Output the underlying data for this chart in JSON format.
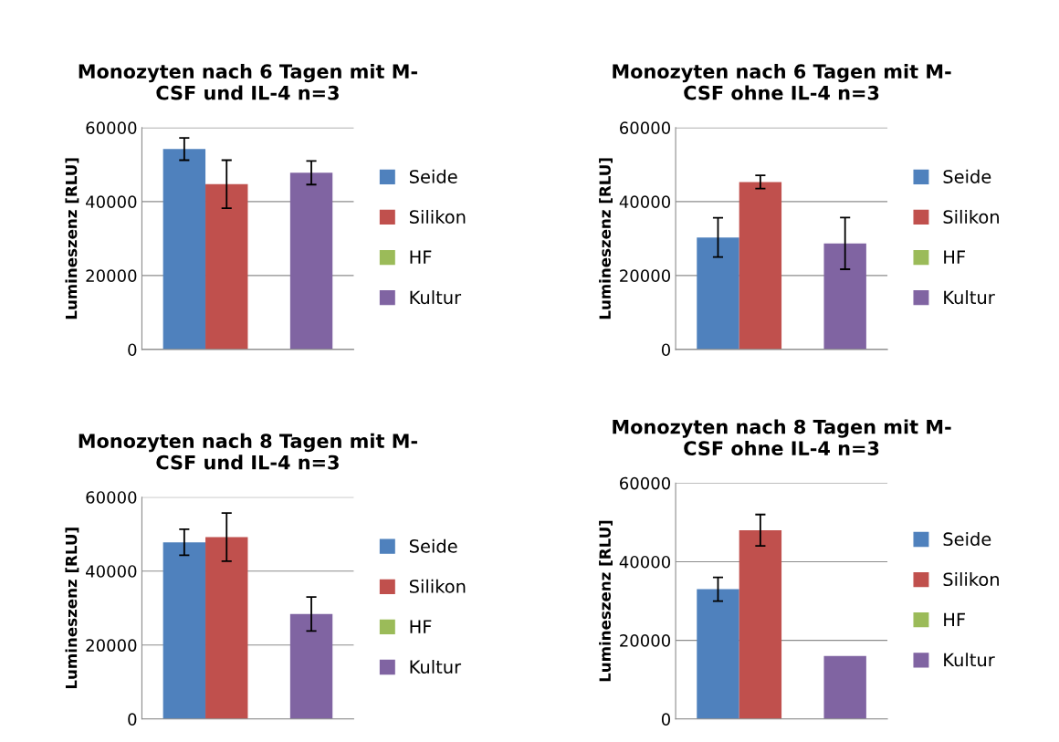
{
  "chart_data": [
    {
      "type": "bar",
      "title": "Monozyten nach 6 Tagen mit M-\nCSF und IL-4 n=3",
      "ylabel": "Lumineszenz [RLU]",
      "categories": [
        null
      ],
      "ylim": [
        0,
        60000
      ],
      "yticks": [
        0,
        20000,
        40000,
        60000
      ],
      "grid": "y",
      "legend": "right",
      "series": [
        {
          "name": "Seide",
          "color": "#4f81bd",
          "values": [
            54200
          ],
          "errors": [
            3000
          ]
        },
        {
          "name": "Silikon",
          "color": "#c0504d",
          "values": [
            44700
          ],
          "errors": [
            6500
          ]
        },
        {
          "name": "HF",
          "color": "#9bbb59",
          "values": [
            null
          ],
          "errors": [
            null
          ]
        },
        {
          "name": "Kultur",
          "color": "#8064a2",
          "values": [
            47800
          ],
          "errors": [
            3200
          ]
        }
      ]
    },
    {
      "type": "bar",
      "title": "Monozyten nach 6 Tagen mit M-\nCSF ohne IL-4 n=3",
      "ylabel": "Lumineszenz [RLU]",
      "categories": [
        null
      ],
      "ylim": [
        0,
        60000
      ],
      "yticks": [
        0,
        20000,
        40000,
        60000
      ],
      "grid": "y",
      "legend": "right",
      "series": [
        {
          "name": "Seide",
          "color": "#4f81bd",
          "values": [
            30300
          ],
          "errors": [
            5300
          ]
        },
        {
          "name": "Silikon",
          "color": "#c0504d",
          "values": [
            45300
          ],
          "errors": [
            1800
          ]
        },
        {
          "name": "HF",
          "color": "#9bbb59",
          "values": [
            null
          ],
          "errors": [
            null
          ]
        },
        {
          "name": "Kultur",
          "color": "#8064a2",
          "values": [
            28700
          ],
          "errors": [
            7000
          ]
        }
      ]
    },
    {
      "type": "bar",
      "title": "Monozyten nach 8 Tagen mit M-\nCSF und IL-4 n=3",
      "ylabel": "Lumineszenz [RLU]",
      "categories": [
        null
      ],
      "ylim": [
        0,
        60000
      ],
      "yticks": [
        0,
        20000,
        40000,
        60000
      ],
      "grid": "y",
      "legend": "right",
      "series": [
        {
          "name": "Seide",
          "color": "#4f81bd",
          "values": [
            47800
          ],
          "errors": [
            3500
          ]
        },
        {
          "name": "Silikon",
          "color": "#c0504d",
          "values": [
            49200
          ],
          "errors": [
            6500
          ]
        },
        {
          "name": "HF",
          "color": "#9bbb59",
          "values": [
            null
          ],
          "errors": [
            null
          ]
        },
        {
          "name": "Kultur",
          "color": "#8064a2",
          "values": [
            28400
          ],
          "errors": [
            4600
          ]
        }
      ]
    },
    {
      "type": "bar",
      "title": "Monozyten nach 8 Tagen mit M-\nCSF ohne IL-4 n=3",
      "ylabel": "Lumineszenz [RLU]",
      "categories": [
        null
      ],
      "ylim": [
        0,
        60000
      ],
      "yticks": [
        0,
        20000,
        40000,
        60000
      ],
      "grid": "y",
      "legend": "right",
      "series": [
        {
          "name": "Seide",
          "color": "#4f81bd",
          "values": [
            33000
          ],
          "errors": [
            3000
          ]
        },
        {
          "name": "Silikon",
          "color": "#c0504d",
          "values": [
            48000
          ],
          "errors": [
            4000
          ]
        },
        {
          "name": "HF",
          "color": "#9bbb59",
          "values": [
            null
          ],
          "errors": [
            null
          ]
        },
        {
          "name": "Kultur",
          "color": "#8064a2",
          "values": [
            16000
          ],
          "errors": [
            null
          ]
        }
      ]
    }
  ]
}
